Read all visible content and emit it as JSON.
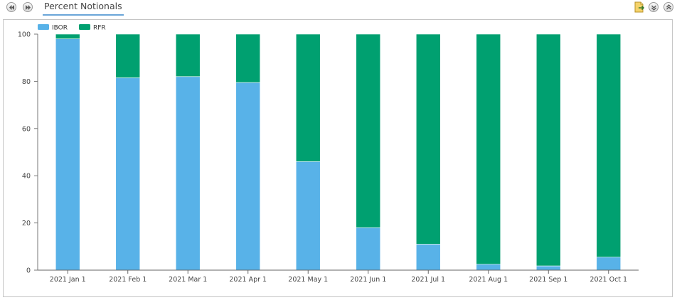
{
  "tab": {
    "label": "Percent Notionals"
  },
  "toolbar": {
    "nav": [
      "rewind-icon",
      "fast-forward-icon"
    ],
    "tools": [
      "export-icon",
      "collapse-icon",
      "expand-icon"
    ]
  },
  "chart_data": {
    "type": "bar",
    "stacked": true,
    "categories": [
      "2021 Jan 1",
      "2021 Feb 1",
      "2021 Mar 1",
      "2021 Apr 1",
      "2021 May 1",
      "2021 Jun 1",
      "2021 Jul 1",
      "2021 Aug 1",
      "2021 Sep 1",
      "2021 Oct 1"
    ],
    "series": [
      {
        "name": "IBOR",
        "color": "#58b2e8",
        "values": [
          98,
          81.5,
          82,
          79.5,
          46,
          18,
          11,
          2.5,
          1.8,
          5.5
        ]
      },
      {
        "name": "RFR",
        "color": "#00a070",
        "values": [
          2,
          18.5,
          18,
          20.5,
          54,
          82,
          89,
          97.5,
          98.2,
          94.5
        ]
      }
    ],
    "ylim": [
      0,
      100
    ],
    "yticks": [
      0,
      20,
      40,
      60,
      80,
      100
    ],
    "legend": "top-left",
    "grid": false
  }
}
